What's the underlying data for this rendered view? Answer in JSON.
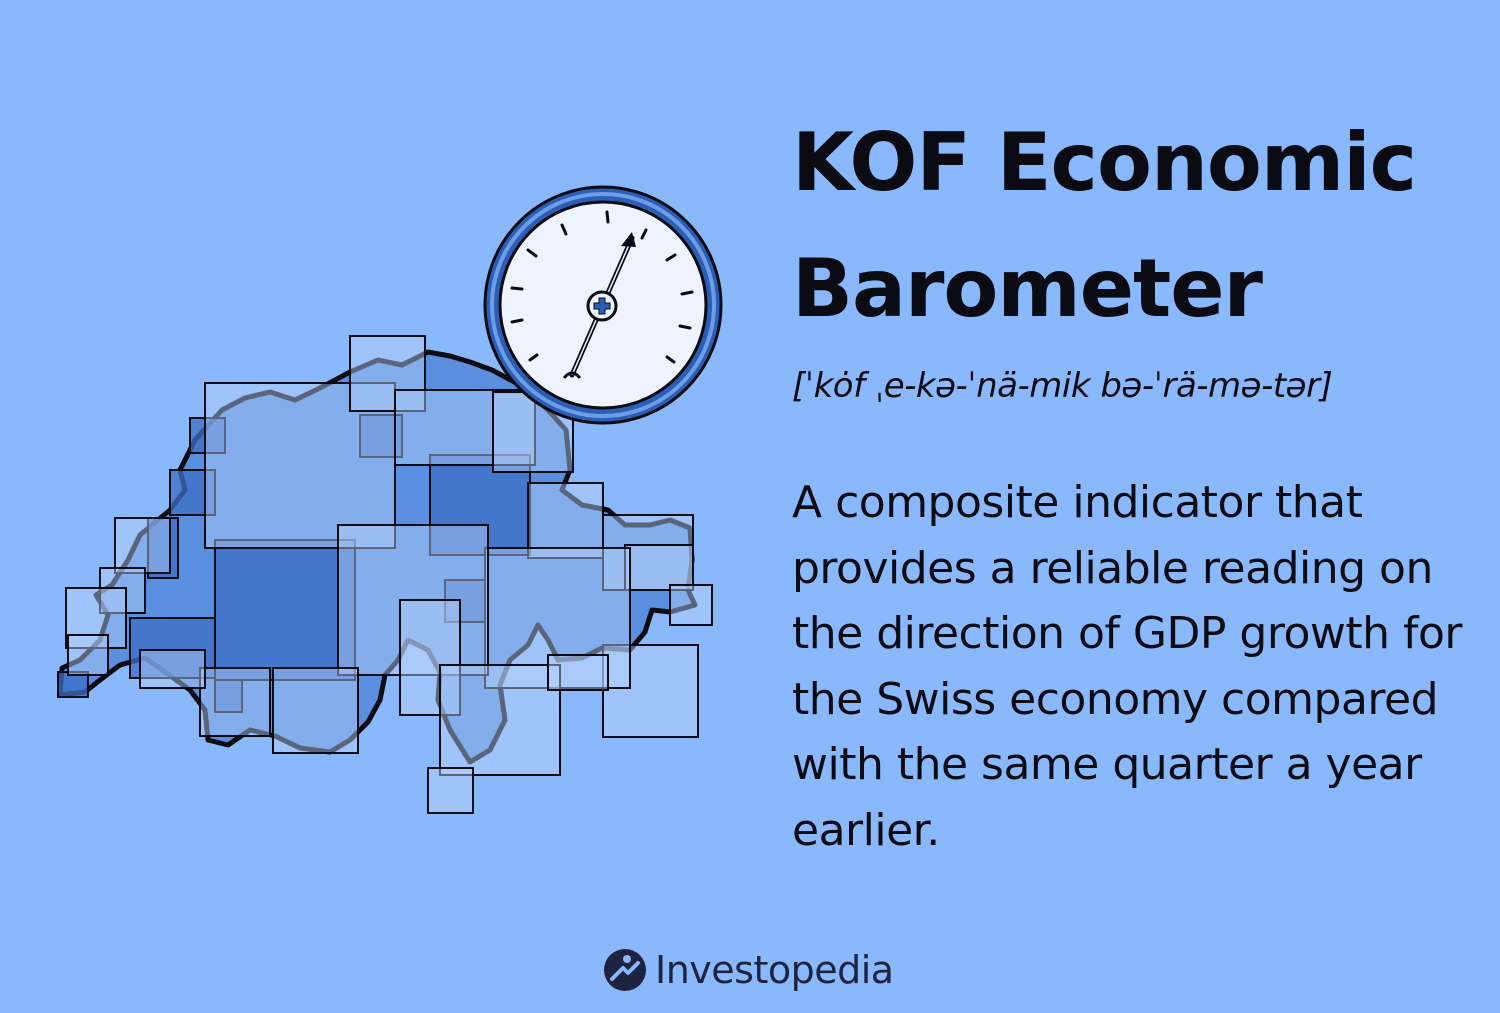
{
  "title": "KOF Economic Barometer",
  "pronunciation": "[ˈkȯf ˌe-kə-ˈnä-mik bə-ˈrä-mə-tər]",
  "definition": "A composite indicator that provides a reliable reading on the direction of GDP growth for the Swiss economy compared with the same quarter a year earlier.",
  "brand": {
    "name": "Investopedia",
    "logo_icon": "investopedia-logo-icon"
  },
  "colors": {
    "background": "#8ab8fc",
    "map_mid": "#5a8fe0",
    "map_dark": "#3d6fc4",
    "map_light": "#b8d3fb",
    "gauge_ring": "#2b5fb5",
    "gauge_face": "#eef4ff"
  },
  "illustration": {
    "map_icon": "switzerland-map-icon",
    "gauge_icon": "barometer-gauge-icon"
  }
}
